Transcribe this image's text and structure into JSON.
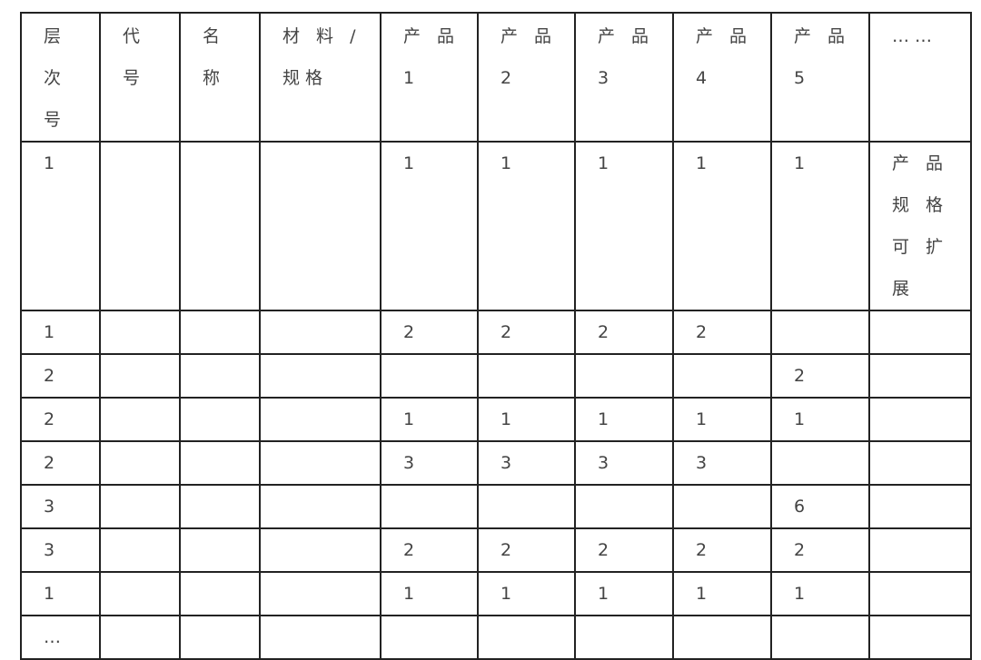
{
  "table": {
    "headers": [
      "层\n次\n号",
      "代\n号",
      "名\n称",
      "材 料 /\n规格",
      "产 品\n1",
      "产 品\n2",
      "产 品\n3",
      "产 品\n4",
      "产 品\n5",
      "……"
    ],
    "rows": [
      [
        "1",
        "",
        "",
        "",
        "1",
        "1",
        "1",
        "1",
        "1",
        "产 品\n规 格\n可 扩\n展"
      ],
      [
        "1",
        "",
        "",
        "",
        "2",
        "2",
        "2",
        "2",
        "",
        ""
      ],
      [
        "2",
        "",
        "",
        "",
        "",
        "",
        "",
        "",
        "2",
        ""
      ],
      [
        "2",
        "",
        "",
        "",
        "1",
        "1",
        "1",
        "1",
        "1",
        ""
      ],
      [
        "2",
        "",
        "",
        "",
        "3",
        "3",
        "3",
        "3",
        "",
        ""
      ],
      [
        "3",
        "",
        "",
        "",
        "",
        "",
        "",
        "",
        "6",
        ""
      ],
      [
        "3",
        "",
        "",
        "",
        "2",
        "2",
        "2",
        "2",
        "2",
        ""
      ],
      [
        "1",
        "",
        "",
        "",
        "1",
        "1",
        "1",
        "1",
        "1",
        ""
      ],
      [
        "…",
        "",
        "",
        "",
        "",
        "",
        "",
        "",
        "",
        ""
      ]
    ]
  }
}
